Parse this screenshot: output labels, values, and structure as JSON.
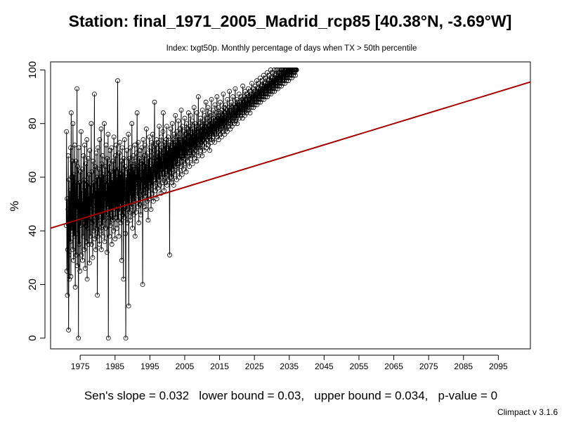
{
  "chart_data": {
    "type": "line",
    "title": "Station: final_1971_2005_Madrid_rcp85 [40.38°N, -3.69°W]",
    "subtitle": "Index: txgt50p. Monthly percentage of days when TX > 50th percentile",
    "ylabel": "%",
    "xlabel": "",
    "xlim": [
      1966.5,
      2104.2
    ],
    "ylim": [
      -4,
      103
    ],
    "x_ticks": [
      1975,
      1985,
      1995,
      2005,
      2015,
      2025,
      2035,
      2045,
      2055,
      2065,
      2075,
      2085,
      2095
    ],
    "x_tick_labels": [
      "1975",
      "1985",
      "1995",
      "2005",
      "2015",
      "2025",
      "2035",
      "2045",
      "2055",
      "2065",
      "2075",
      "2085",
      "2095"
    ],
    "y_ticks": [
      0,
      20,
      40,
      60,
      80,
      100
    ],
    "y_tick_labels": [
      "0",
      "20",
      "40",
      "60",
      "80",
      "100"
    ],
    "series": [
      {
        "x_start": 1971.0,
        "x_step": 0.0833333,
        "marker": "open-circle",
        "color": "#000000",
        "values": [
          42,
          77,
          25,
          52,
          16,
          33,
          48,
          68,
          3,
          31,
          59,
          22,
          42,
          55,
          36,
          71,
          23,
          84,
          60,
          40,
          47,
          66,
          33,
          80,
          50,
          29,
          61,
          45,
          38,
          72,
          55,
          19,
          44,
          66,
          31,
          58,
          48,
          93,
          27,
          64,
          39,
          52,
          0,
          71,
          46,
          35,
          58,
          25,
          62,
          42,
          50,
          77,
          31,
          55,
          44,
          63,
          29,
          51,
          38,
          68,
          45,
          59,
          33,
          72,
          47,
          26,
          56,
          42,
          65,
          36,
          49,
          74,
          22,
          58,
          41,
          67,
          35,
          53,
          44,
          61,
          28,
          70,
          46,
          38,
          57,
          49,
          80,
          35,
          62,
          43,
          54,
          30,
          66,
          48,
          40,
          58,
          52,
          91,
          37,
          64,
          45,
          55,
          33,
          69,
          50,
          41,
          60,
          16,
          49,
          71,
          38,
          56,
          44,
          63,
          35,
          74,
          52,
          46,
          60,
          40,
          78,
          33,
          65,
          57,
          42,
          68,
          49,
          38,
          61,
          55,
          44,
          80,
          36,
          58,
          51,
          64,
          41,
          72,
          46,
          55,
          32,
          67,
          60,
          49,
          76,
          0,
          58,
          45,
          65,
          38,
          53,
          70,
          42,
          62,
          50,
          47,
          71,
          35,
          59,
          54,
          44,
          66,
          51,
          40,
          75,
          57,
          48,
          63,
          37,
          68,
          55,
          45,
          72,
          49,
          60,
          41,
          56,
          96,
          44,
          63,
          52,
          38,
          69,
          57,
          47,
          73,
          50,
          61,
          43,
          58,
          66,
          29,
          54,
          71,
          46,
          62,
          53,
          22,
          67,
          58,
          45,
          74,
          51,
          64,
          39,
          0,
          60,
          55,
          48,
          70,
          43,
          63,
          56,
          50,
          76,
          12,
          59,
          67,
          47,
          62,
          53,
          71,
          44,
          65,
          58,
          49,
          80,
          56,
          41,
          64,
          52,
          68,
          46,
          59,
          63,
          51,
          72,
          38,
          66,
          55,
          61,
          47,
          69,
          58,
          84,
          53,
          64,
          49,
          73,
          57,
          43,
          62,
          67,
          50,
          70,
          55,
          60,
          46,
          65,
          58,
          71,
          52,
          66,
          20,
          60,
          74,
          54,
          63,
          49,
          68,
          57,
          72,
          53,
          61,
          65,
          48,
          78,
          56,
          62,
          51,
          69,
          59,
          44,
          67,
          63,
          55,
          75,
          58,
          71,
          52,
          64,
          60,
          48,
          68,
          73,
          57,
          62,
          54,
          76,
          66,
          51,
          65,
          59,
          70,
          88,
          60,
          67,
          55,
          72,
          63,
          58,
          74,
          52,
          66,
          61,
          69,
          56,
          73,
          64,
          59,
          79,
          65,
          57,
          70,
          62,
          68,
          54,
          75,
          63,
          71,
          60,
          66,
          58,
          77,
          84,
          62,
          69,
          55,
          73,
          65,
          60,
          72,
          58,
          67,
          74,
          63,
          79,
          57,
          70,
          66,
          61,
          75,
          59,
          68,
          72,
          64,
          31,
          73,
          62,
          69,
          78,
          60,
          71,
          65,
          58,
          80,
          67,
          63,
          74,
          70,
          57,
          76,
          66,
          72,
          61,
          69,
          83,
          64,
          73,
          68,
          59,
          77,
          70,
          65,
          75,
          62,
          81,
          71,
          67,
          74,
          60,
          78,
          69,
          64,
          73,
          70,
          85,
          66,
          72,
          61,
          79,
          68,
          75,
          70,
          63,
          77,
          71,
          67,
          82,
          65,
          74,
          69,
          76,
          62,
          80,
          72,
          68,
          78,
          66,
          73,
          71,
          84,
          69,
          75,
          64,
          79,
          73,
          70,
          83,
          67,
          76,
          72,
          68,
          81,
          74,
          65,
          78,
          71,
          75,
          69,
          86,
          73,
          67,
          80,
          76,
          72,
          70,
          79,
          74,
          66,
          84,
          77,
          71,
          75,
          73,
          90,
          68,
          78,
          74,
          80,
          71,
          76,
          82,
          70,
          77,
          73,
          79,
          75,
          68,
          85,
          72,
          78,
          74,
          81,
          76,
          70,
          83,
          79,
          73,
          77,
          75,
          88,
          71,
          80,
          76,
          78,
          74,
          82,
          86,
          72,
          79,
          77,
          75,
          84,
          70,
          81,
          78,
          76,
          83,
          74,
          89,
          73,
          80,
          79,
          77,
          76,
          85,
          75,
          82,
          78,
          80,
          73,
          87,
          77,
          81,
          79,
          76,
          84,
          75,
          90,
          78,
          82,
          80,
          77,
          86,
          74,
          83,
          81,
          79,
          78,
          88,
          76,
          84,
          80,
          82,
          75,
          85,
          79,
          83,
          81,
          77,
          91,
          78,
          86,
          80,
          84,
          76,
          82,
          79,
          87,
          83,
          81,
          78,
          85,
          77,
          89,
          82,
          84,
          80,
          79,
          86,
          83,
          92,
          81,
          85,
          78,
          84,
          80,
          88,
          82,
          86,
          79,
          83,
          81,
          90,
          85,
          84,
          82,
          87,
          80,
          86,
          83,
          93,
          81,
          85,
          84,
          82,
          89,
          86,
          80,
          88,
          83,
          87,
          85,
          84,
          91,
          82,
          86,
          88,
          84,
          85,
          83,
          90,
          87,
          86,
          84,
          89,
          82,
          94,
          85,
          88,
          86,
          84,
          90,
          87,
          83,
          92,
          86,
          89,
          85,
          88,
          84,
          91,
          87,
          90,
          86,
          85,
          93,
          88,
          89,
          87,
          86,
          92,
          84,
          90,
          88,
          91,
          87,
          86,
          95,
          89,
          90,
          88,
          87,
          93,
          86,
          91,
          89,
          92,
          88,
          87,
          94,
          90,
          91,
          89,
          88,
          96,
          87,
          92,
          90,
          93,
          89,
          88,
          95,
          91,
          92,
          90,
          89,
          97,
          88,
          93,
          91,
          94,
          90,
          89,
          96,
          92,
          93,
          91,
          90,
          98,
          89,
          94,
          92,
          95,
          91,
          90,
          97,
          93,
          94,
          92,
          91,
          99,
          90,
          95,
          93,
          96,
          92,
          91,
          98,
          94,
          95,
          93,
          92,
          100,
          91,
          96,
          94,
          97,
          93,
          92,
          99,
          95,
          96,
          94,
          93,
          100,
          92,
          97,
          95,
          98,
          94,
          93,
          100,
          96,
          97,
          95,
          94,
          100,
          93,
          98,
          96,
          99,
          95,
          94,
          100,
          97,
          98,
          96,
          95,
          100,
          94,
          99,
          97,
          100,
          96,
          95,
          100,
          98,
          99,
          97,
          96,
          100,
          95,
          100,
          98,
          100,
          97,
          96,
          100,
          99,
          100,
          98,
          97,
          100,
          96,
          100,
          99,
          100,
          98,
          97,
          100,
          100,
          100,
          99,
          98,
          100,
          97,
          100,
          100,
          100,
          99,
          98,
          100,
          100,
          100,
          100,
          99,
          100,
          98,
          100,
          100,
          100,
          100
        ]
      }
    ],
    "trend": {
      "x": [
        1966.5,
        2104.2
      ],
      "y": [
        41,
        95.5
      ],
      "color": "#a50000"
    },
    "grid": false,
    "legend": "none"
  },
  "stats": {
    "footer": "Sen's slope = 0.032   lower bound = 0.03,   upper bound = 0.034,   p-value = 0"
  },
  "version": "Climpact v 3.1.6"
}
